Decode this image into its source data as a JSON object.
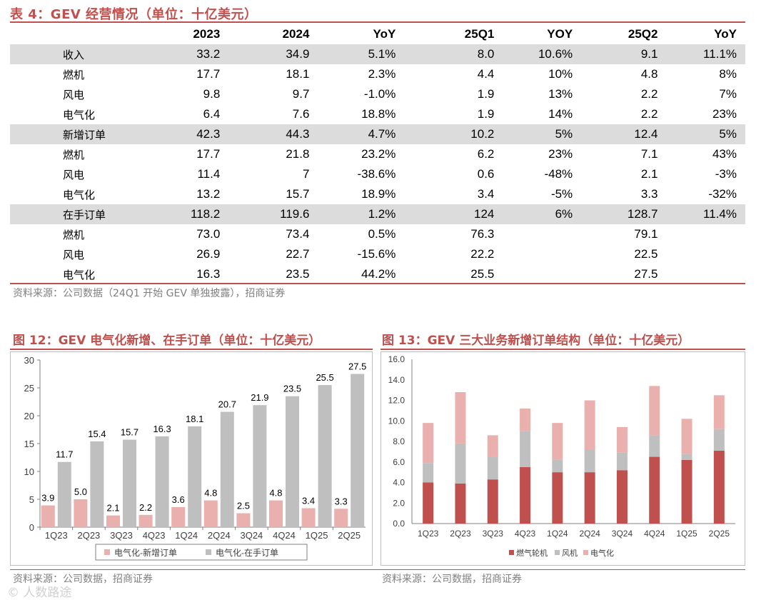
{
  "table": {
    "title": "表 4：GEV 经营情况（单位：十亿美元）",
    "headers": [
      "",
      "2023",
      "2024",
      "YoY",
      "25Q1",
      "YOY",
      "25Q2",
      "YoY"
    ],
    "rows": [
      {
        "label": "收入",
        "highlight": true,
        "cells": [
          "33.2",
          "34.9",
          "5.1%",
          "8.0",
          "10.6%",
          "9.1",
          "11.1%"
        ]
      },
      {
        "label": "燃机",
        "highlight": false,
        "cells": [
          "17.7",
          "18.1",
          "2.3%",
          "4.4",
          "10%",
          "4.8",
          "8%"
        ]
      },
      {
        "label": "风电",
        "highlight": false,
        "cells": [
          "9.8",
          "9.7",
          "-1.0%",
          "1.9",
          "13%",
          "2.2",
          "7%"
        ]
      },
      {
        "label": "电气化",
        "highlight": false,
        "cells": [
          "6.4",
          "7.6",
          "18.8%",
          "1.9",
          "14%",
          "2.2",
          "23%"
        ]
      },
      {
        "label": "新增订单",
        "highlight": true,
        "cells": [
          "42.3",
          "44.3",
          "4.7%",
          "10.2",
          "5%",
          "12.4",
          "5%"
        ]
      },
      {
        "label": "燃机",
        "highlight": false,
        "cells": [
          "17.7",
          "21.8",
          "23.2%",
          "6.2",
          "23%",
          "7.1",
          "43%"
        ]
      },
      {
        "label": "风电",
        "highlight": false,
        "cells": [
          "11.4",
          "7",
          "-38.6%",
          "0.6",
          "-48%",
          "2.1",
          "-3%"
        ]
      },
      {
        "label": "电气化",
        "highlight": false,
        "cells": [
          "13.2",
          "15.7",
          "18.9%",
          "3.4",
          "-5%",
          "3.3",
          "-32%"
        ]
      },
      {
        "label": "在手订单",
        "highlight": true,
        "cells": [
          "118.2",
          "119.6",
          "1.2%",
          "124",
          "6%",
          "128.7",
          "11.4%"
        ]
      },
      {
        "label": "燃机",
        "highlight": false,
        "cells": [
          "73.0",
          "73.4",
          "0.5%",
          "76.3",
          "",
          "79.1",
          ""
        ]
      },
      {
        "label": "风电",
        "highlight": false,
        "cells": [
          "26.9",
          "22.7",
          "-15.6%",
          "22.2",
          "",
          "22.5",
          ""
        ]
      },
      {
        "label": "电气化",
        "highlight": false,
        "cells": [
          "16.3",
          "23.5",
          "44.2%",
          "25.5",
          "",
          "27.5",
          ""
        ]
      }
    ],
    "source": "资料来源：公司数据（24Q1 开始 GEV 单独披露），招商证券"
  },
  "fig12": {
    "title": "图 12：GEV 电气化新增、在手订单（单位：十亿美元）",
    "source": "资料来源：公司数据，招商证券"
  },
  "fig13": {
    "title": "图 13：GEV 三大业务新增订单结构（单位：十亿美元）",
    "source": "资料来源：公司数据，招商证券"
  },
  "watermark": "© 人数路途",
  "colors": {
    "accent": "#c0504d",
    "pink": "#eab0ae",
    "gray": "#bfbfbf",
    "darkred": "#c0504d",
    "header_bg": "#dcdcdc"
  },
  "chart_data": [
    {
      "type": "bar",
      "title": "GEV 电气化新增、在手订单（单位：十亿美元）",
      "categories": [
        "1Q23",
        "2Q23",
        "3Q23",
        "4Q23",
        "1Q24",
        "2Q24",
        "3Q24",
        "4Q24",
        "1Q25",
        "2Q25"
      ],
      "series": [
        {
          "name": "电气化-新增订单",
          "values": [
            3.9,
            5.0,
            2.1,
            2.2,
            3.6,
            4.8,
            2.5,
            4.8,
            3.4,
            3.3
          ]
        },
        {
          "name": "电气化-在手订单",
          "values": [
            11.7,
            15.4,
            15.7,
            16.3,
            18.1,
            20.7,
            21.9,
            23.5,
            25.5,
            27.5
          ]
        }
      ],
      "ylim": [
        0,
        30
      ],
      "yticks": [
        0,
        5,
        10,
        15,
        20,
        25,
        30
      ],
      "legend": "bottom"
    },
    {
      "type": "bar",
      "stacked": true,
      "title": "GEV 三大业务新增订单结构（单位：十亿美元）",
      "categories": [
        "1Q23",
        "2Q23",
        "3Q23",
        "4Q23",
        "1Q24",
        "2Q24",
        "3Q24",
        "4Q24",
        "1Q25",
        "2Q25"
      ],
      "series": [
        {
          "name": "燃气轮机",
          "values": [
            4.0,
            3.9,
            4.3,
            5.5,
            5.0,
            5.0,
            5.2,
            6.5,
            6.2,
            7.1
          ]
        },
        {
          "name": "风机",
          "values": [
            1.9,
            3.9,
            2.2,
            3.5,
            1.2,
            2.2,
            1.7,
            2.1,
            0.6,
            2.1
          ]
        },
        {
          "name": "电气化",
          "values": [
            3.9,
            5.0,
            2.1,
            2.2,
            3.6,
            4.8,
            2.5,
            4.8,
            3.4,
            3.3
          ]
        }
      ],
      "ylim": [
        0,
        16
      ],
      "yticks": [
        "0.0",
        "2.0",
        "4.0",
        "6.0",
        "8.0",
        "10.0",
        "12.0",
        "14.0",
        "16.0"
      ],
      "legend": "bottom"
    }
  ]
}
